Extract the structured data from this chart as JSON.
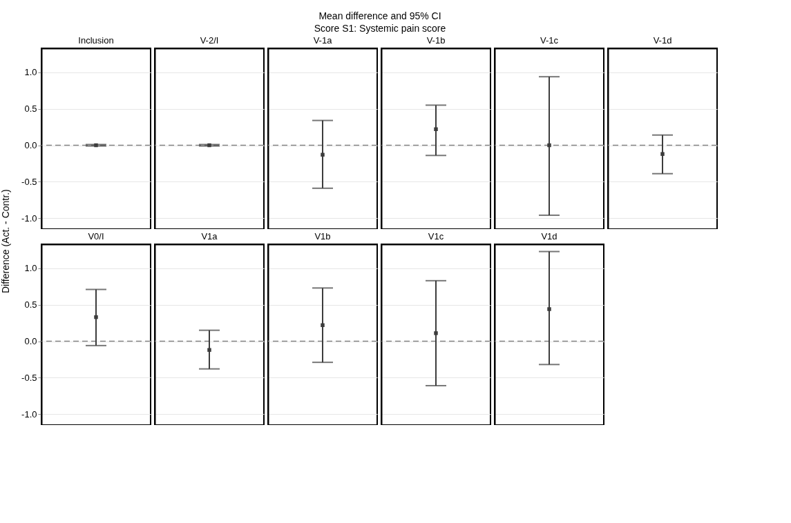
{
  "chart_data": [
    {
      "type": "other",
      "title": "Mean difference and 95% CI",
      "subtitle": "Score S1: Systemic pain score"
    },
    {
      "type": "scatter",
      "ylabel": "Difference (Act. - Contr.)",
      "categories": [
        "Inclusion"
      ],
      "series": [
        {
          "color": "#3c3c3c",
          "values": [
            0
          ],
          "errors": [
            [
              -0.01,
              0.01
            ]
          ]
        }
      ],
      "ylim": [
        -1.15,
        1.33
      ],
      "yticks": [
        {
          "value": -1,
          "label": "-1.0"
        },
        {
          "value": -0.5,
          "label": "-0.5"
        },
        {
          "value": 0,
          "label": "0.0"
        },
        {
          "value": 0.5,
          "label": "0.5"
        },
        {
          "value": 1,
          "label": "1.0"
        }
      ],
      "ref_lines": [
        {
          "axis": "y",
          "value": 0,
          "line_style": "dashed",
          "color": "#888888"
        }
      ],
      "grid": "y",
      "marker": "square"
    },
    {
      "type": "scatter",
      "categories": [
        "V-2/I"
      ],
      "series": [
        {
          "color": "#3c3c3c",
          "values": [
            0
          ],
          "errors": [
            [
              -0.01,
              0.01
            ]
          ]
        }
      ],
      "ylim": [
        -1.15,
        1.33
      ],
      "yticks": [
        -1,
        -0.5,
        0,
        0.5,
        1
      ],
      "ref_lines": [
        {
          "axis": "y",
          "value": 0,
          "line_style": "dashed",
          "color": "#888888"
        }
      ],
      "grid": "y",
      "marker": "square",
      "tick_labels": "x"
    },
    {
      "type": "scatter",
      "categories": [
        "V-1a"
      ],
      "series": [
        {
          "color": "#3c3c3c",
          "values": [
            -0.13
          ],
          "errors": [
            [
              -0.59,
              0.34
            ]
          ]
        }
      ],
      "ylim": [
        -1.15,
        1.33
      ],
      "yticks": [
        -1,
        -0.5,
        0,
        0.5,
        1
      ],
      "ref_lines": [
        {
          "axis": "y",
          "value": 0,
          "line_style": "dashed",
          "color": "#888888"
        }
      ],
      "grid": "y",
      "marker": "square",
      "tick_labels": "x"
    },
    {
      "type": "scatter",
      "categories": [
        "V-1b"
      ],
      "series": [
        {
          "color": "#3c3c3c",
          "values": [
            0.22
          ],
          "errors": [
            [
              -0.14,
              0.55
            ]
          ]
        }
      ],
      "ylim": [
        -1.15,
        1.33
      ],
      "yticks": [
        -1,
        -0.5,
        0,
        0.5,
        1
      ],
      "ref_lines": [
        {
          "axis": "y",
          "value": 0,
          "line_style": "dashed",
          "color": "#888888"
        }
      ],
      "grid": "y",
      "marker": "square",
      "tick_labels": "x"
    },
    {
      "type": "scatter",
      "categories": [
        "V-1c"
      ],
      "series": [
        {
          "color": "#3c3c3c",
          "values": [
            0
          ],
          "errors": [
            [
              -0.96,
              0.94
            ]
          ]
        }
      ],
      "ylim": [
        -1.15,
        1.33
      ],
      "yticks": [
        -1,
        -0.5,
        0,
        0.5,
        1
      ],
      "ref_lines": [
        {
          "axis": "y",
          "value": 0,
          "line_style": "dashed",
          "color": "#888888"
        }
      ],
      "grid": "y",
      "marker": "square",
      "tick_labels": "x"
    },
    {
      "type": "scatter",
      "categories": [
        "V-1d"
      ],
      "series": [
        {
          "color": "#3c3c3c",
          "values": [
            -0.12
          ],
          "errors": [
            [
              -0.39,
              0.14
            ]
          ]
        }
      ],
      "ylim": [
        -1.15,
        1.33
      ],
      "yticks": [
        -1,
        -0.5,
        0,
        0.5,
        1
      ],
      "ref_lines": [
        {
          "axis": "y",
          "value": 0,
          "line_style": "dashed",
          "color": "#888888"
        }
      ],
      "grid": "y",
      "marker": "square",
      "tick_labels": "x"
    },
    {
      "type": "scatter",
      "categories": [
        "V0/I"
      ],
      "series": [
        {
          "color": "#3c3c3c",
          "values": [
            0.33
          ],
          "errors": [
            [
              -0.06,
              0.71
            ]
          ]
        }
      ],
      "ylim": [
        -1.15,
        1.33
      ],
      "yticks": [
        {
          "value": -1,
          "label": "-1.0"
        },
        {
          "value": -0.5,
          "label": "-0.5"
        },
        {
          "value": 0,
          "label": "0.0"
        },
        {
          "value": 0.5,
          "label": "0.5"
        },
        {
          "value": 1,
          "label": "1.0"
        }
      ],
      "ref_lines": [
        {
          "axis": "y",
          "value": 0,
          "line_style": "dashed",
          "color": "#888888"
        }
      ],
      "grid": "y",
      "marker": "square"
    },
    {
      "type": "scatter",
      "categories": [
        "V1a"
      ],
      "series": [
        {
          "color": "#3c3c3c",
          "values": [
            -0.12
          ],
          "errors": [
            [
              -0.38,
              0.15
            ]
          ]
        }
      ],
      "ylim": [
        -1.15,
        1.33
      ],
      "yticks": [
        -1,
        -0.5,
        0,
        0.5,
        1
      ],
      "ref_lines": [
        {
          "axis": "y",
          "value": 0,
          "line_style": "dashed",
          "color": "#888888"
        }
      ],
      "grid": "y",
      "marker": "square",
      "tick_labels": "x"
    },
    {
      "type": "scatter",
      "categories": [
        "V1b"
      ],
      "series": [
        {
          "color": "#3c3c3c",
          "values": [
            0.22
          ],
          "errors": [
            [
              -0.29,
              0.73
            ]
          ]
        }
      ],
      "ylim": [
        -1.15,
        1.33
      ],
      "yticks": [
        -1,
        -0.5,
        0,
        0.5,
        1
      ],
      "ref_lines": [
        {
          "axis": "y",
          "value": 0,
          "line_style": "dashed",
          "color": "#888888"
        }
      ],
      "grid": "y",
      "marker": "square",
      "tick_labels": "x"
    },
    {
      "type": "scatter",
      "categories": [
        "V1c"
      ],
      "series": [
        {
          "color": "#3c3c3c",
          "values": [
            0.11
          ],
          "errors": [
            [
              -0.61,
              0.83
            ]
          ]
        }
      ],
      "ylim": [
        -1.15,
        1.33
      ],
      "yticks": [
        -1,
        -0.5,
        0,
        0.5,
        1
      ],
      "ref_lines": [
        {
          "axis": "y",
          "value": 0,
          "line_style": "dashed",
          "color": "#888888"
        }
      ],
      "grid": "y",
      "marker": "square",
      "tick_labels": "x"
    },
    {
      "type": "scatter",
      "categories": [
        "V1d"
      ],
      "series": [
        {
          "color": "#3c3c3c",
          "values": [
            0.44
          ],
          "errors": [
            [
              -0.32,
              1.23
            ]
          ]
        }
      ],
      "ylim": [
        -1.15,
        1.33
      ],
      "yticks": [
        -1,
        -0.5,
        0,
        0.5,
        1
      ],
      "ref_lines": [
        {
          "axis": "y",
          "value": 0,
          "line_style": "dashed",
          "color": "#888888"
        }
      ],
      "grid": "y",
      "marker": "square",
      "tick_labels": "x"
    }
  ]
}
